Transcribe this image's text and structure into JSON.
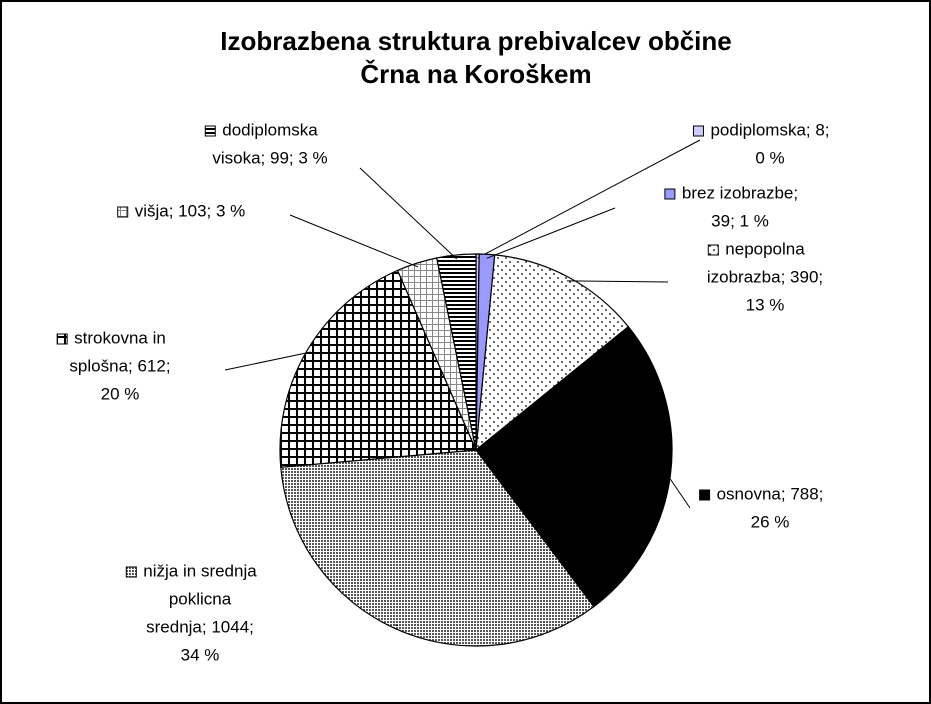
{
  "chart_data": {
    "type": "pie",
    "title": [
      "Izobrazbena struktura prebivalcev občine",
      "Črna na Koroškem"
    ],
    "values": [
      8,
      39,
      390,
      788,
      1044,
      612,
      103,
      99
    ],
    "value_labels": [
      [
        "podiplomska; 8;",
        "0 %"
      ],
      [
        "brez izobrazbe;",
        "39; 1 %"
      ],
      [
        "nepopolna",
        "izobrazba; 390;",
        "13 %"
      ],
      [
        "osnovna; 788;",
        "26 %"
      ],
      [
        "nižja in srednja",
        "poklicna",
        "srednja; 1044;",
        "34 %"
      ],
      [
        "strokovna in",
        "splošna; 612;",
        "20 %"
      ],
      [
        "višja; 103; 3 %"
      ],
      [
        "dodiplomska",
        "visoka; 99; 3 %"
      ]
    ],
    "colors": [
      "#ccccff",
      "#9999ff",
      "url(#dots)",
      "#000000",
      "url(#dense)",
      "url(#grid)",
      "url(#fine)",
      "url(#stripes)"
    ]
  }
}
